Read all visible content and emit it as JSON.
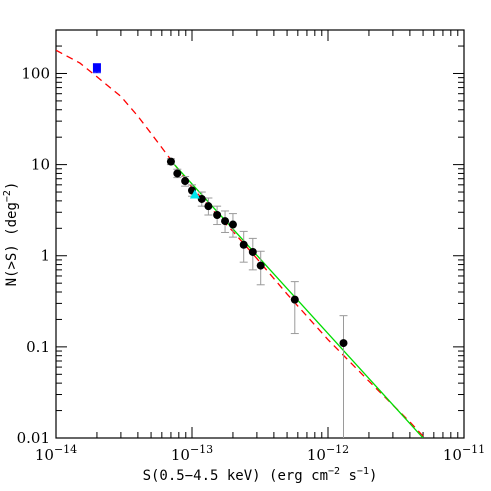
{
  "chart_data": {
    "type": "scatter",
    "xscale": "log",
    "yscale": "log",
    "xlim": [
      1e-14,
      1e-11
    ],
    "ylim": [
      0.01,
      300
    ],
    "xlabel": {
      "pre": "S(0.5−4.5 keV) (erg cm",
      "sup1": "−2",
      "mid": " s",
      "sup2": "−1",
      "post": ")"
    },
    "ylabel": {
      "pre": "N(>S) (deg",
      "sup": "−2",
      "post": ")"
    },
    "x_ticks": [
      {
        "value": 1e-14,
        "base": "10",
        "exp": "−14"
      },
      {
        "value": 1e-13,
        "base": "10",
        "exp": "−13"
      },
      {
        "value": 1e-12,
        "base": "10",
        "exp": "−12"
      },
      {
        "value": 1e-11,
        "base": "10",
        "exp": "−11"
      }
    ],
    "y_ticks": [
      {
        "value": 0.01,
        "label": "0.01"
      },
      {
        "value": 0.1,
        "label": "0.1"
      },
      {
        "value": 1,
        "label": "1"
      },
      {
        "value": 10,
        "label": "10"
      },
      {
        "value": 100,
        "label": "100"
      }
    ],
    "grid": false,
    "series": [
      {
        "marker": "circle",
        "color": "#000000",
        "errorbar_color": "#9a9a9a",
        "points": [
          {
            "x": 7e-14,
            "y": 10.8,
            "ylo": 10.0,
            "yhi": 11.6
          },
          {
            "x": 7.8e-14,
            "y": 8.0,
            "ylo": 7.2,
            "yhi": 8.9
          },
          {
            "x": 8.9e-14,
            "y": 6.6,
            "ylo": 5.8,
            "yhi": 7.4
          },
          {
            "x": 1e-13,
            "y": 5.2,
            "ylo": 4.5,
            "yhi": 6.0
          },
          {
            "x": 1.18e-13,
            "y": 4.2,
            "ylo": 3.5,
            "yhi": 5.0
          },
          {
            "x": 1.32e-13,
            "y": 3.5,
            "ylo": 2.8,
            "yhi": 4.3
          },
          {
            "x": 1.53e-13,
            "y": 2.8,
            "ylo": 2.2,
            "yhi": 3.5
          },
          {
            "x": 1.75e-13,
            "y": 2.4,
            "ylo": 1.8,
            "yhi": 3.1
          },
          {
            "x": 2e-13,
            "y": 2.2,
            "ylo": 1.6,
            "yhi": 2.9
          },
          {
            "x": 2.4e-13,
            "y": 1.32,
            "ylo": 0.85,
            "yhi": 1.85
          },
          {
            "x": 2.8e-13,
            "y": 1.1,
            "ylo": 0.7,
            "yhi": 1.55
          },
          {
            "x": 3.2e-13,
            "y": 0.78,
            "ylo": 0.48,
            "yhi": 1.12
          },
          {
            "x": 5.7e-13,
            "y": 0.33,
            "ylo": 0.14,
            "yhi": 0.52
          },
          {
            "x": 1.3e-12,
            "y": 0.11,
            "ylo": 0.01,
            "yhi": 0.22
          }
        ]
      },
      {
        "marker": "square",
        "color": "#0000ff",
        "points": [
          {
            "x": 2e-14,
            "y": 115,
            "ylo": 102,
            "yhi": 128
          }
        ]
      },
      {
        "marker": "triangle",
        "color": "#00e5ee",
        "points": [
          {
            "x": 1.05e-13,
            "y": 4.7
          }
        ]
      },
      {
        "marker": "line",
        "style": "dashed",
        "color": "#ff0000",
        "points": [
          {
            "x": 1e-14,
            "y": 180
          },
          {
            "x": 1.5e-14,
            "y": 130
          },
          {
            "x": 2e-14,
            "y": 92
          },
          {
            "x": 3e-14,
            "y": 56
          },
          {
            "x": 4e-14,
            "y": 34
          },
          {
            "x": 5e-14,
            "y": 22
          },
          {
            "x": 7e-14,
            "y": 11.3
          },
          {
            "x": 1e-13,
            "y": 5.6
          },
          {
            "x": 1.5e-13,
            "y": 2.9
          },
          {
            "x": 2e-13,
            "y": 1.85
          },
          {
            "x": 3e-13,
            "y": 0.93
          },
          {
            "x": 5e-13,
            "y": 0.38
          },
          {
            "x": 1e-12,
            "y": 0.12
          },
          {
            "x": 2e-12,
            "y": 0.042
          },
          {
            "x": 3e-12,
            "y": 0.023
          },
          {
            "x": 4e-12,
            "y": 0.015
          },
          {
            "x": 5e-12,
            "y": 0.0105
          }
        ]
      },
      {
        "marker": "line",
        "style": "solid",
        "color": "#00dd00",
        "points": [
          {
            "x": 7e-14,
            "y": 11.0
          },
          {
            "x": 5e-12,
            "y": 0.01
          }
        ]
      }
    ]
  }
}
